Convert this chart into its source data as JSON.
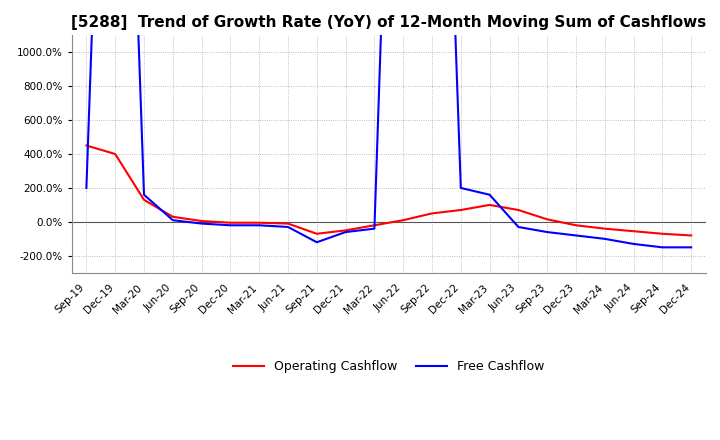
{
  "title": "[5288]  Trend of Growth Rate (YoY) of 12-Month Moving Sum of Cashflows",
  "title_fontsize": 11,
  "ylim": [
    -300,
    1100
  ],
  "yticks": [
    -200,
    0,
    200,
    400,
    600,
    800,
    1000
  ],
  "background_color": "#ffffff",
  "grid_color": "#aaaaaa",
  "operating_color": "#ff0000",
  "free_color": "#0000ff",
  "legend_labels": [
    "Operating Cashflow",
    "Free Cashflow"
  ],
  "x_labels": [
    "Sep-19",
    "Dec-19",
    "Mar-20",
    "Jun-20",
    "Sep-20",
    "Dec-20",
    "Mar-21",
    "Jun-21",
    "Sep-21",
    "Dec-21",
    "Mar-22",
    "Jun-22",
    "Sep-22",
    "Dec-22",
    "Mar-23",
    "Jun-23",
    "Sep-23",
    "Dec-23",
    "Mar-24",
    "Jun-24",
    "Sep-24",
    "Dec-24"
  ],
  "operating_cashflow": [
    450,
    400,
    130,
    30,
    5,
    -5,
    -5,
    -10,
    -70,
    -50,
    -20,
    10,
    50,
    70,
    100,
    70,
    15,
    -20,
    -40,
    -55,
    -70,
    -80
  ],
  "free_cashflow": [
    200,
    5000,
    160,
    10,
    -10,
    -20,
    -20,
    -30,
    -120,
    -60,
    -40,
    5000,
    5000,
    200,
    160,
    -30,
    -60,
    -80,
    -100,
    -130,
    -150,
    -150
  ]
}
